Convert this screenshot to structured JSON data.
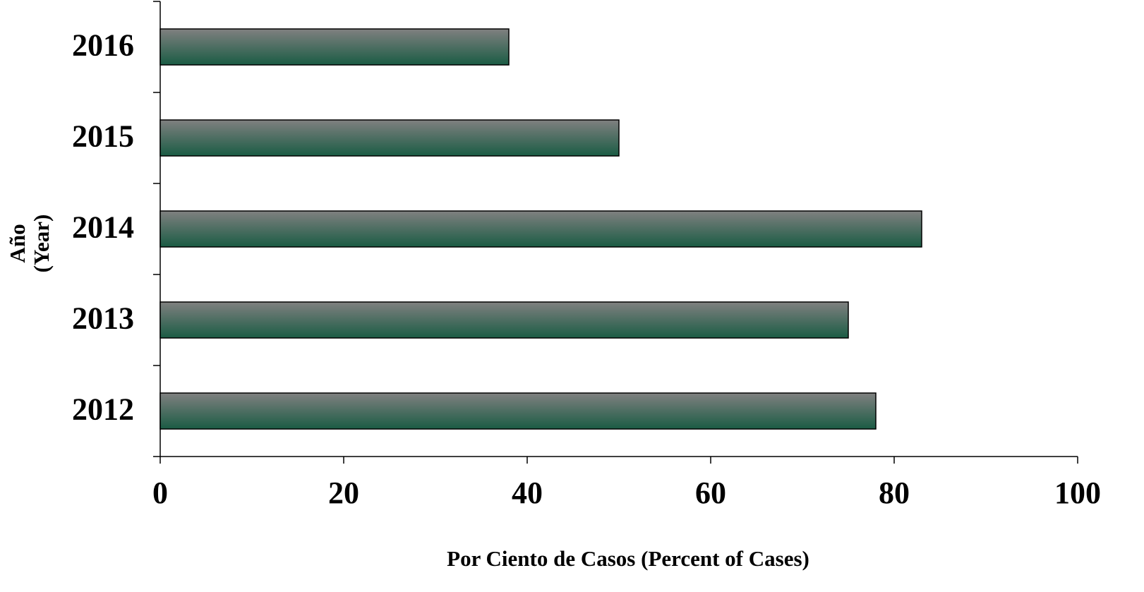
{
  "chart_data": {
    "type": "barh",
    "categories": [
      "2012",
      "2013",
      "2014",
      "2015",
      "2016"
    ],
    "values": [
      78,
      75,
      83,
      50,
      38
    ],
    "color": [
      "#808080",
      "#1a5c44"
    ],
    "xlim": [
      0,
      100
    ],
    "xticks": [
      0,
      20,
      40,
      60,
      80,
      100
    ],
    "x_label": "Por Ciento de Casos (Percent of Cases)",
    "y_label": [
      "Año",
      "(Year)"
    ],
    "grid": false
  }
}
